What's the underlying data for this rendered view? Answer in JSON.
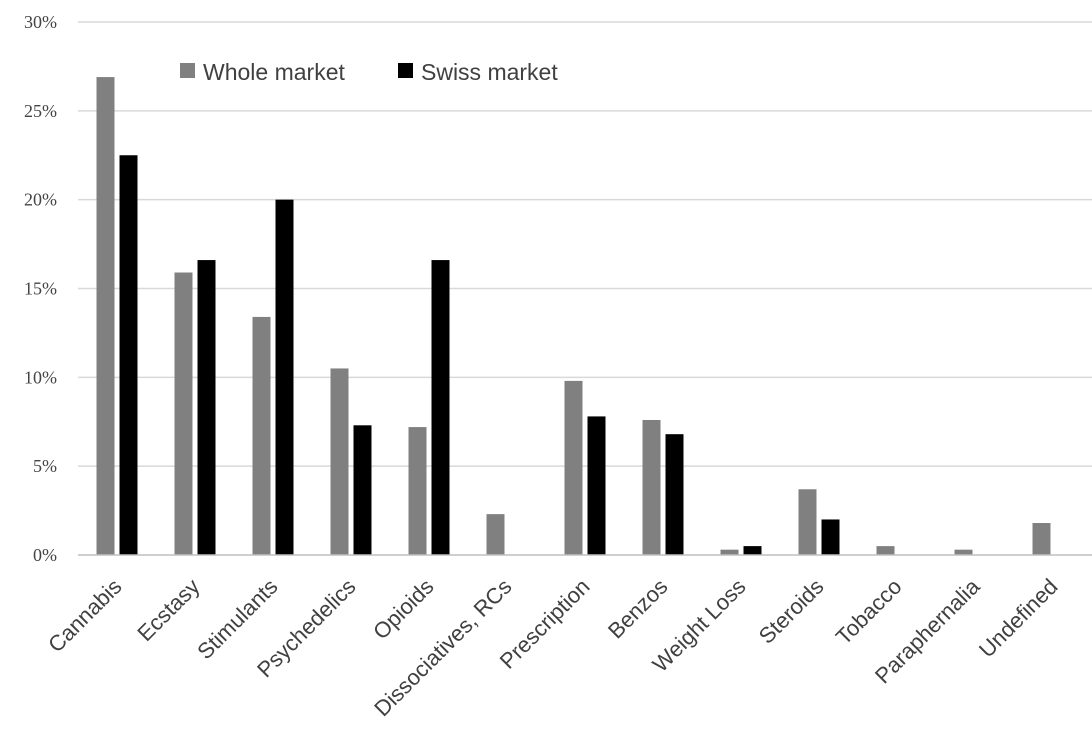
{
  "chart_data": {
    "type": "bar",
    "categories": [
      "Cannabis",
      "Ecstasy",
      "Stimulants",
      "Psychedelics",
      "Opioids",
      "Dissociatives, RCs",
      "Prescription",
      "Benzos",
      "Weight Loss",
      "Steroids",
      "Tobacco",
      "Paraphernalia",
      "Undefined"
    ],
    "series": [
      {
        "name": "Whole market",
        "color": "#808080",
        "values": [
          26.9,
          15.9,
          13.4,
          10.5,
          7.2,
          2.3,
          9.8,
          7.6,
          0.3,
          3.7,
          0.5,
          0.3,
          1.8
        ]
      },
      {
        "name": "Swiss market",
        "color": "#000000",
        "values": [
          22.5,
          16.6,
          20.0,
          7.3,
          16.6,
          0,
          7.8,
          6.8,
          0.5,
          2.0,
          0,
          0,
          0
        ]
      }
    ],
    "ylim": [
      0,
      30
    ],
    "yticks": [
      "0%",
      "5%",
      "10%",
      "15%",
      "20%",
      "25%",
      "30%"
    ],
    "grid": true,
    "legend_position": "top-left",
    "title": "",
    "xlabel": "",
    "ylabel": ""
  }
}
